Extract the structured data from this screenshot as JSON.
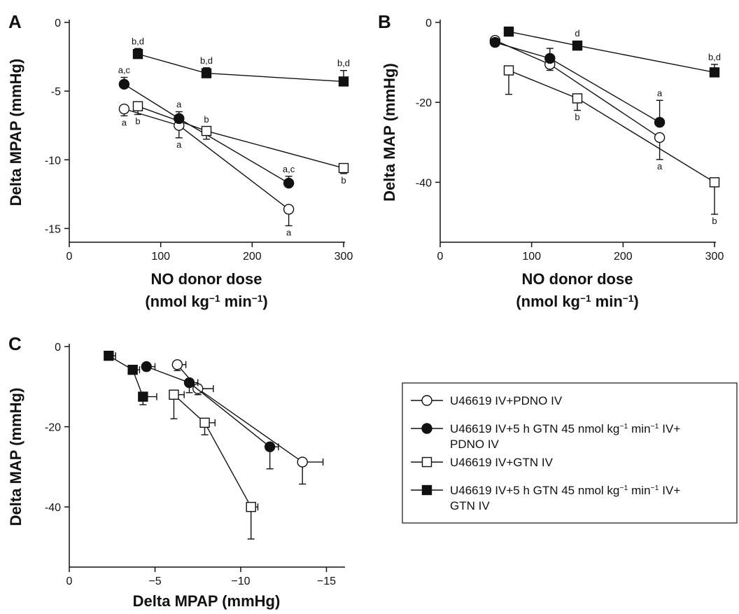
{
  "chart_data": [
    {
      "type": "line",
      "panel": "A",
      "xlabel": "NO donor dose",
      "xlabel2": "(nmol kg⁻¹ min⁻¹)",
      "ylabel": "Delta MPAP (mmHg)",
      "xlim": [
        0,
        300
      ],
      "ylim": [
        -16,
        0
      ],
      "xticks": [
        0,
        100,
        200,
        300
      ],
      "yticks": [
        0,
        -5,
        -10,
        -15
      ],
      "series": [
        {
          "name": "U46619 IV+PDNO IV",
          "marker": "open-circle",
          "x": [
            60,
            120,
            240
          ],
          "y": [
            -6.3,
            -7.5,
            -13.6
          ],
          "err": [
            0.5,
            0.9,
            1.2
          ],
          "err_dir": "down",
          "labels": [
            "a",
            "a",
            "a"
          ],
          "label_pos": "below"
        },
        {
          "name": "U46619 IV+5 h GTN 45 nmol kg⁻¹ min⁻¹ IV+PDNO IV",
          "marker": "filled-circle",
          "x": [
            60,
            120,
            240
          ],
          "y": [
            -4.5,
            -7.0,
            -11.7
          ],
          "err": [
            0.5,
            0.5,
            0.5
          ],
          "err_dir": "up",
          "labels": [
            "a,c",
            "a",
            "a,c"
          ],
          "label_pos": "above"
        },
        {
          "name": "U46619 IV+GTN IV",
          "marker": "open-square",
          "x": [
            75,
            150,
            300
          ],
          "y": [
            -6.1,
            -7.9,
            -10.6
          ],
          "err": [
            0.6,
            0.6,
            0.4
          ],
          "err_dir": "down",
          "labels": [
            "b",
            "b",
            "b"
          ],
          "label_pos": [
            "below",
            "above",
            "below"
          ]
        },
        {
          "name": "U46619 IV+5 h GTN 45 nmol kg⁻¹ min⁻¹ IV+GTN IV",
          "marker": "filled-square",
          "x": [
            75,
            150,
            300
          ],
          "y": [
            -2.3,
            -3.7,
            -4.3
          ],
          "err": [
            0.4,
            0.4,
            0.8
          ],
          "err_dir": "up",
          "labels": [
            "b,d",
            "b,d",
            "b,d"
          ],
          "label_pos": "above"
        }
      ]
    },
    {
      "type": "line",
      "panel": "B",
      "xlabel": "NO donor dose",
      "xlabel2": "(nmol kg⁻¹ min⁻¹)",
      "ylabel": "Delta MAP (mmHg)",
      "xlim": [
        0,
        300
      ],
      "ylim": [
        -55,
        0
      ],
      "xticks": [
        0,
        100,
        200,
        300
      ],
      "yticks": [
        0,
        -20,
        -40
      ],
      "series": [
        {
          "name": "U46619 IV+PDNO IV",
          "marker": "open-circle",
          "x": [
            60,
            120,
            240
          ],
          "y": [
            -4.5,
            -10.5,
            -28.8
          ],
          "err": [
            1.5,
            1.5,
            5.5
          ],
          "err_dir": "down",
          "labels": [
            "",
            "",
            "a"
          ],
          "label_pos": "below"
        },
        {
          "name": "U46619 IV+5 h GTN 45 nmol kg⁻¹ min⁻¹ IV+PDNO IV",
          "marker": "filled-circle",
          "x": [
            60,
            120,
            240
          ],
          "y": [
            -5.0,
            -9.0,
            -25.0
          ],
          "err": [
            1.0,
            2.5,
            5.5
          ],
          "err_dir": "up",
          "labels": [
            "",
            "",
            "a"
          ],
          "label_pos": "above"
        },
        {
          "name": "U46619 IV+GTN IV",
          "marker": "open-square",
          "x": [
            75,
            150,
            300
          ],
          "y": [
            -12.0,
            -19.0,
            -40.0
          ],
          "err": [
            6.0,
            3.0,
            8.0
          ],
          "err_dir": "down",
          "labels": [
            "",
            "b",
            "b"
          ],
          "label_pos": "below"
        },
        {
          "name": "U46619 IV+5 h GTN 45 nmol kg⁻¹ min⁻¹ IV+GTN IV",
          "marker": "filled-square",
          "x": [
            75,
            150,
            300
          ],
          "y": [
            -2.3,
            -5.8,
            -12.5
          ],
          "err": [
            0.5,
            1.0,
            2.0
          ],
          "err_dir": "up",
          "labels": [
            "",
            "d",
            "b,d"
          ],
          "label_pos": "above"
        }
      ]
    },
    {
      "type": "scatter",
      "panel": "C",
      "xlabel": "Delta MPAP (mmHg)",
      "ylabel": "Delta MAP (mmHg)",
      "xlim": [
        0,
        -16
      ],
      "ylim": [
        -55,
        0
      ],
      "xticks": [
        0,
        -5,
        -10,
        -15
      ],
      "xtick_labels": [
        "0",
        "−5",
        "−10",
        "−15"
      ],
      "yticks": [
        0,
        -20,
        -40
      ],
      "series": [
        {
          "name": "U46619 IV+PDNO IV",
          "marker": "open-circle",
          "x": [
            -6.3,
            -7.5,
            -13.6
          ],
          "y": [
            -4.5,
            -10.5,
            -28.8
          ],
          "xerr": [
            0.5,
            0.9,
            1.2
          ],
          "yerr": [
            1.5,
            1.5,
            5.5
          ]
        },
        {
          "name": "U46619 IV+5 h GTN 45 nmol kg⁻¹ min⁻¹ IV+PDNO IV",
          "marker": "filled-circle",
          "x": [
            -4.5,
            -7.0,
            -11.7
          ],
          "y": [
            -5.0,
            -9.0,
            -25.0
          ],
          "xerr": [
            0.5,
            0.5,
            0.5
          ],
          "yerr": [
            1.0,
            2.5,
            5.5
          ]
        },
        {
          "name": "U46619 IV+GTN IV",
          "marker": "open-square",
          "x": [
            -6.1,
            -7.9,
            -10.6
          ],
          "y": [
            -12.0,
            -19.0,
            -40.0
          ],
          "xerr": [
            0.6,
            0.6,
            0.4
          ],
          "yerr": [
            6.0,
            3.0,
            8.0
          ]
        },
        {
          "name": "U46619 IV+5 h GTN 45 nmol kg⁻¹ min⁻¹ IV+GTN IV",
          "marker": "filled-square",
          "x": [
            -2.3,
            -3.7,
            -4.3
          ],
          "y": [
            -2.3,
            -5.8,
            -12.5
          ],
          "xerr": [
            0.4,
            0.4,
            0.8
          ],
          "yerr": [
            0.5,
            1.0,
            2.0
          ]
        }
      ]
    }
  ],
  "legend": {
    "placement": "right of panel C",
    "items": [
      {
        "marker": "open-circle",
        "lines": [
          "U46619 IV+PDNO IV"
        ]
      },
      {
        "marker": "filled-circle",
        "lines": [
          "U46619 IV+5 h GTN 45 nmol kg⁻¹ min⁻¹ IV+",
          "PDNO IV"
        ]
      },
      {
        "marker": "open-square",
        "lines": [
          "U46619 IV+GTN IV"
        ]
      },
      {
        "marker": "filled-square",
        "lines": [
          "U46619 IV+5 h GTN 45 nmol kg⁻¹ min⁻¹ IV+",
          "GTN IV"
        ]
      }
    ]
  }
}
